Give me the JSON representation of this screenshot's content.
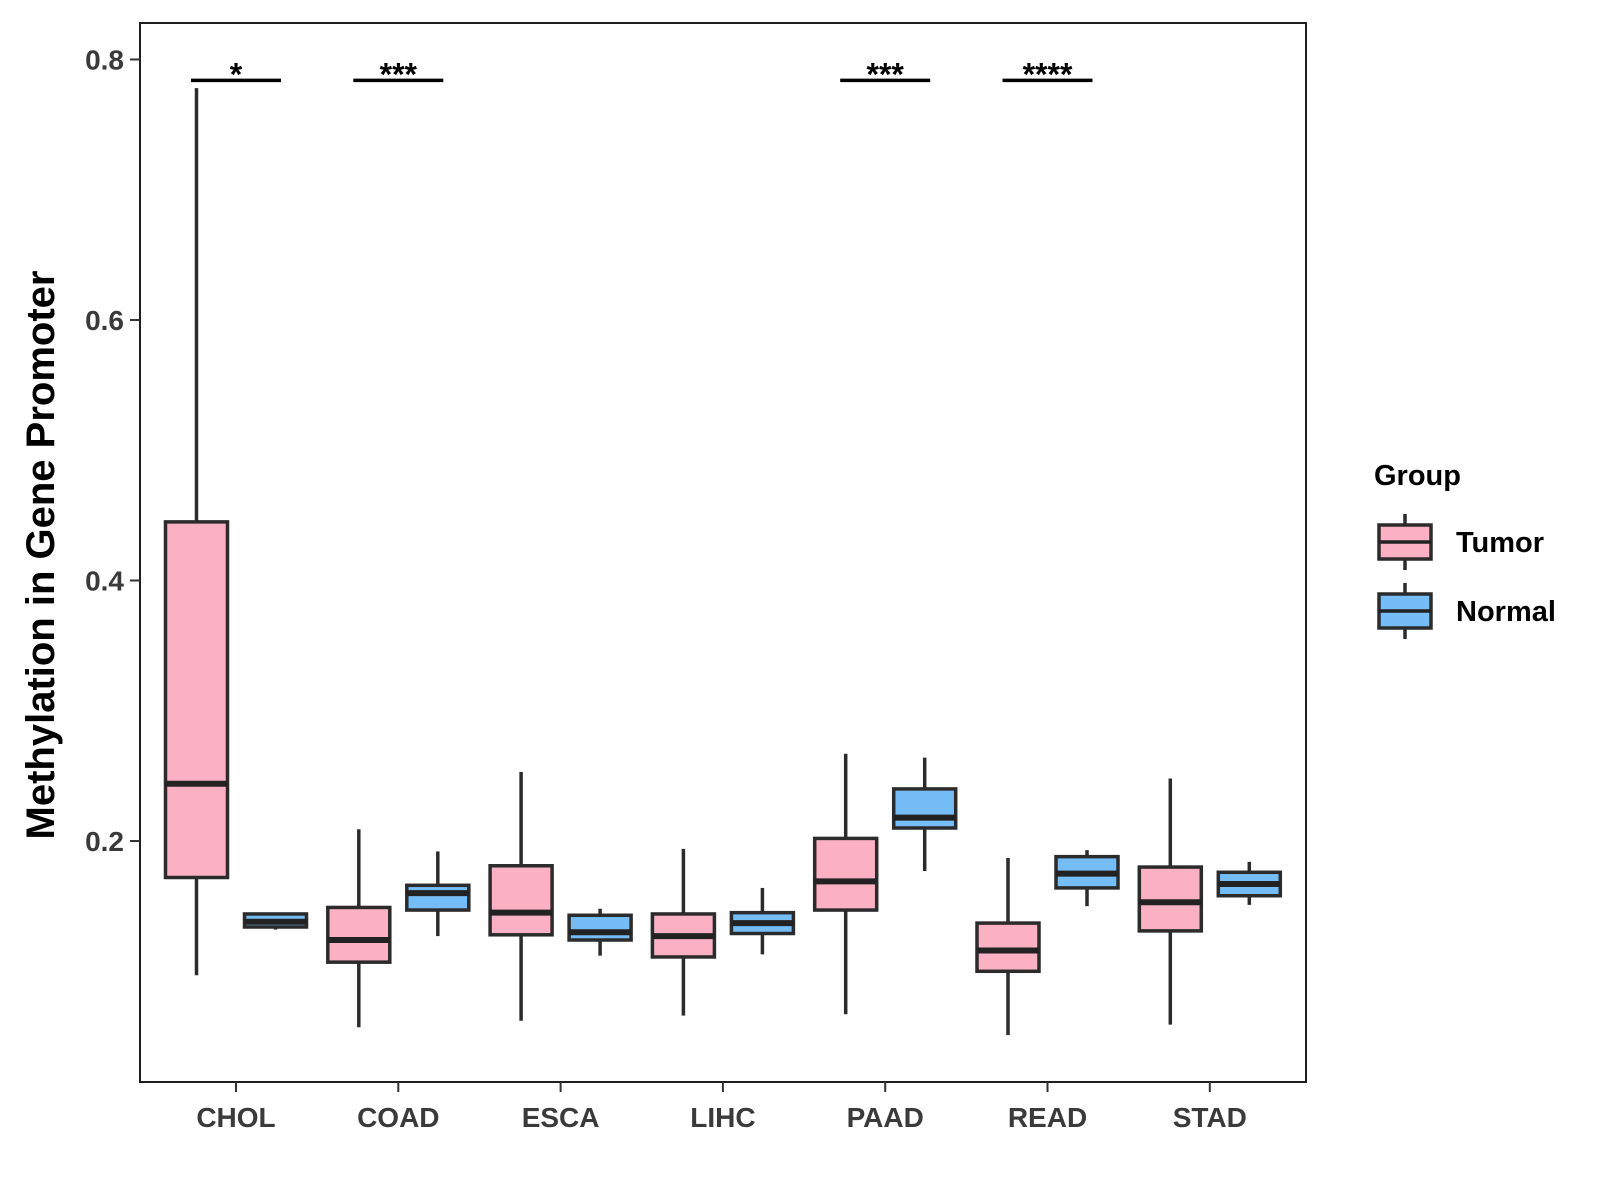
{
  "chart_data": {
    "type": "boxplot",
    "title": "",
    "xlabel": "",
    "ylabel": "Methylation in Gene Promoter",
    "ylim": [
      0.015,
      0.828
    ],
    "yticks": [
      0.2,
      0.4,
      0.6,
      0.8
    ],
    "ytick_labels": [
      "0.2",
      "0.4",
      "0.6",
      "0.8"
    ],
    "categories": [
      "CHOL",
      "COAD",
      "ESCA",
      "LIHC",
      "PAAD",
      "READ",
      "STAD"
    ],
    "legend": {
      "title": "Group",
      "position": "right",
      "items": [
        {
          "name": "Tumor",
          "color": "#fbb1c3"
        },
        {
          "name": "Normal",
          "color": "#74bdf6"
        }
      ]
    },
    "series": [
      {
        "name": "Tumor",
        "color": "#fbb1c3",
        "boxes": [
          {
            "category": "CHOL",
            "min": 0.097,
            "q1": 0.172,
            "median": 0.244,
            "q3": 0.445,
            "max": 0.778
          },
          {
            "category": "COAD",
            "min": 0.057,
            "q1": 0.107,
            "median": 0.124,
            "q3": 0.149,
            "max": 0.209
          },
          {
            "category": "ESCA",
            "min": 0.062,
            "q1": 0.128,
            "median": 0.145,
            "q3": 0.181,
            "max": 0.253
          },
          {
            "category": "LIHC",
            "min": 0.066,
            "q1": 0.111,
            "median": 0.127,
            "q3": 0.144,
            "max": 0.194
          },
          {
            "category": "PAAD",
            "min": 0.067,
            "q1": 0.147,
            "median": 0.169,
            "q3": 0.202,
            "max": 0.267
          },
          {
            "category": "READ",
            "min": 0.051,
            "q1": 0.1,
            "median": 0.116,
            "q3": 0.137,
            "max": 0.187
          },
          {
            "category": "STAD",
            "min": 0.059,
            "q1": 0.131,
            "median": 0.153,
            "q3": 0.18,
            "max": 0.248
          }
        ]
      },
      {
        "name": "Normal",
        "color": "#74bdf6",
        "boxes": [
          {
            "category": "CHOL",
            "min": 0.132,
            "q1": 0.134,
            "median": 0.138,
            "q3": 0.144,
            "max": 0.144
          },
          {
            "category": "COAD",
            "min": 0.127,
            "q1": 0.147,
            "median": 0.16,
            "q3": 0.166,
            "max": 0.192
          },
          {
            "category": "ESCA",
            "min": 0.112,
            "q1": 0.124,
            "median": 0.13,
            "q3": 0.143,
            "max": 0.148
          },
          {
            "category": "LIHC",
            "min": 0.113,
            "q1": 0.129,
            "median": 0.137,
            "q3": 0.145,
            "max": 0.164
          },
          {
            "category": "PAAD",
            "min": 0.177,
            "q1": 0.21,
            "median": 0.218,
            "q3": 0.24,
            "max": 0.264
          },
          {
            "category": "READ",
            "min": 0.15,
            "q1": 0.164,
            "median": 0.175,
            "q3": 0.188,
            "max": 0.193
          },
          {
            "category": "STAD",
            "min": 0.151,
            "q1": 0.158,
            "median": 0.167,
            "q3": 0.176,
            "max": 0.184
          }
        ]
      }
    ],
    "significance": [
      {
        "category": "CHOL",
        "label": "*"
      },
      {
        "category": "COAD",
        "label": "***"
      },
      {
        "category": "PAAD",
        "label": "***"
      },
      {
        "category": "READ",
        "label": "****"
      }
    ],
    "significance_y": 0.784,
    "grid": false
  }
}
